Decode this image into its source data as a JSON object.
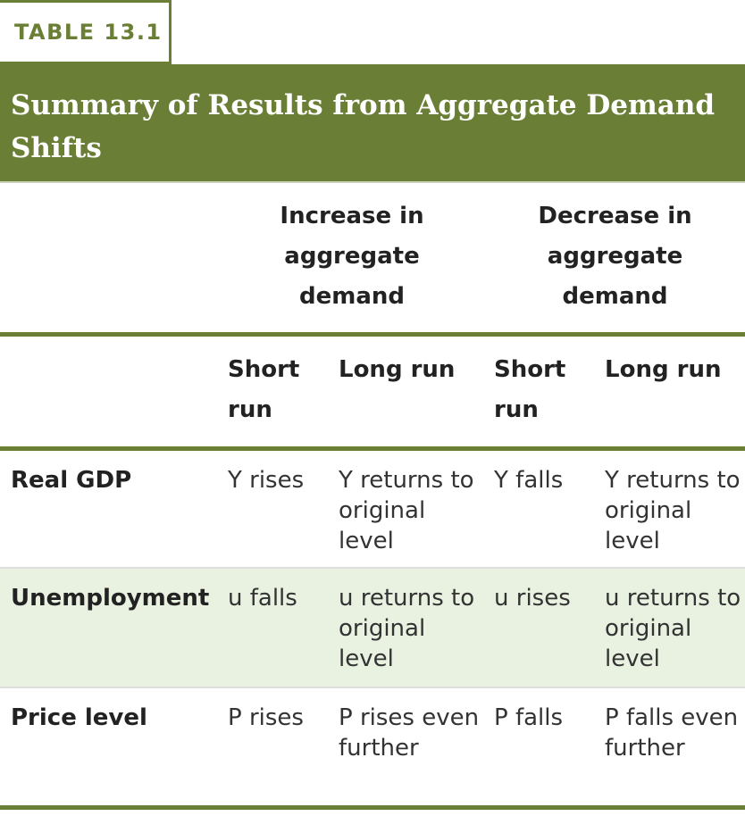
{
  "table_label": "TABLE 13.1",
  "title": "Summary of Results from Aggregate Demand Shifts",
  "group_headers": [
    "Increase in aggregate demand",
    "Decrease in aggregate demand"
  ],
  "sub_headers": [
    "Short run",
    "Long run",
    "Short run",
    "Long run"
  ],
  "rows": [
    {
      "label": "Real GDP",
      "cells": [
        "Y rises",
        "Y returns to original level",
        "Y falls",
        "Y returns to original level"
      ]
    },
    {
      "label": "Unemployment",
      "cells": [
        "u falls",
        "u returns to original level",
        "u rises",
        "u returns to original level"
      ]
    },
    {
      "label": "Price level",
      "cells": [
        "P rises",
        "P rises even further",
        "P falls",
        "P falls even further"
      ]
    }
  ],
  "colors": {
    "accent": "#6a7f35",
    "alt_row": "#e9f1e1"
  }
}
